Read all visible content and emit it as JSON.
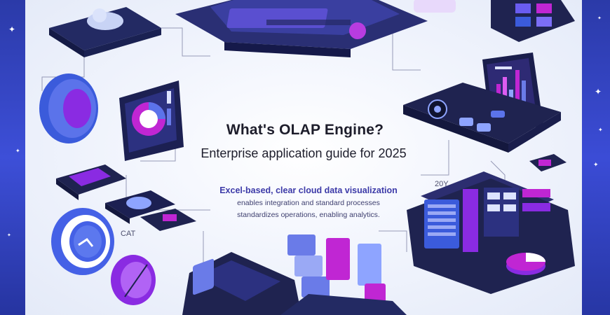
{
  "headline": {
    "title": "What's OLAP Engine?",
    "subtitle": "Enterprise application guide for 2025"
  },
  "description": {
    "line1": "Excel-based, clear cloud data visualization",
    "line2": "enables integration and standard processes",
    "line3": "standardizes operations, enabling analytics."
  },
  "labels": {
    "left_small": "CAT",
    "right_small": "20Y"
  },
  "colors": {
    "navy": "#1f2350",
    "purple": "#8a2be2",
    "magenta": "#c026d3",
    "blue": "#3b5bdb",
    "background": "#eef2fb"
  }
}
